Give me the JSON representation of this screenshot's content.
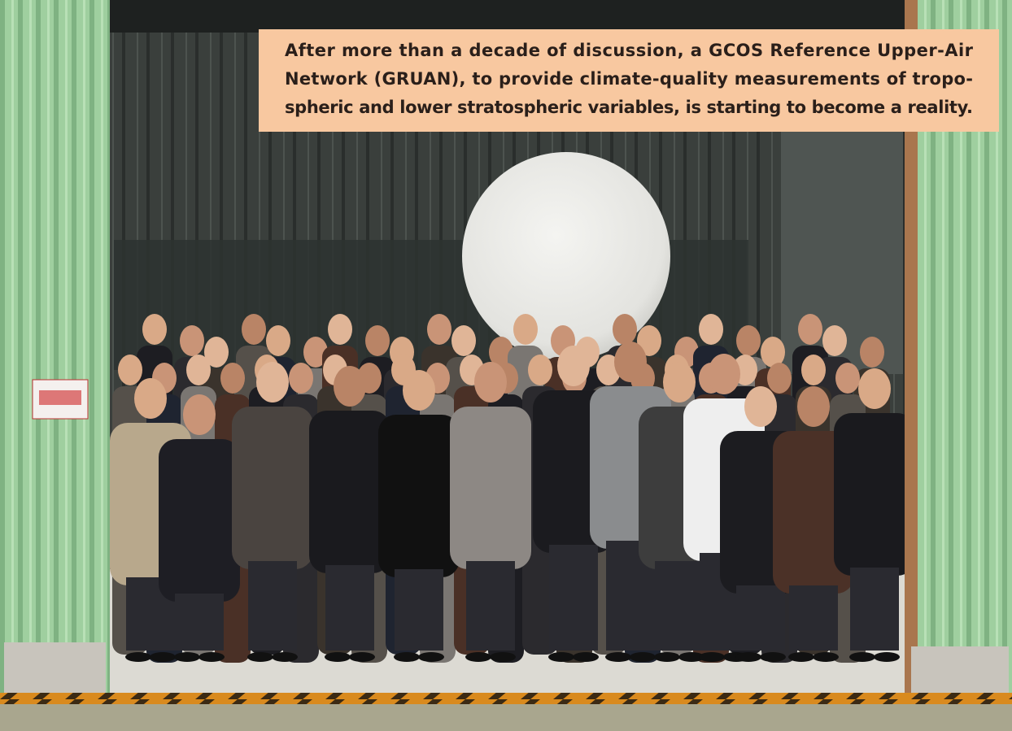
{
  "caption": {
    "lines": [
      "After more than a decade of discussion, a GCOS Reference Upper-Air",
      "Network (GRUAN), to provide climate-quality measurements of tropo-",
      "spheric and lower stratospheric variables, is starting to become a reality."
    ]
  }
}
